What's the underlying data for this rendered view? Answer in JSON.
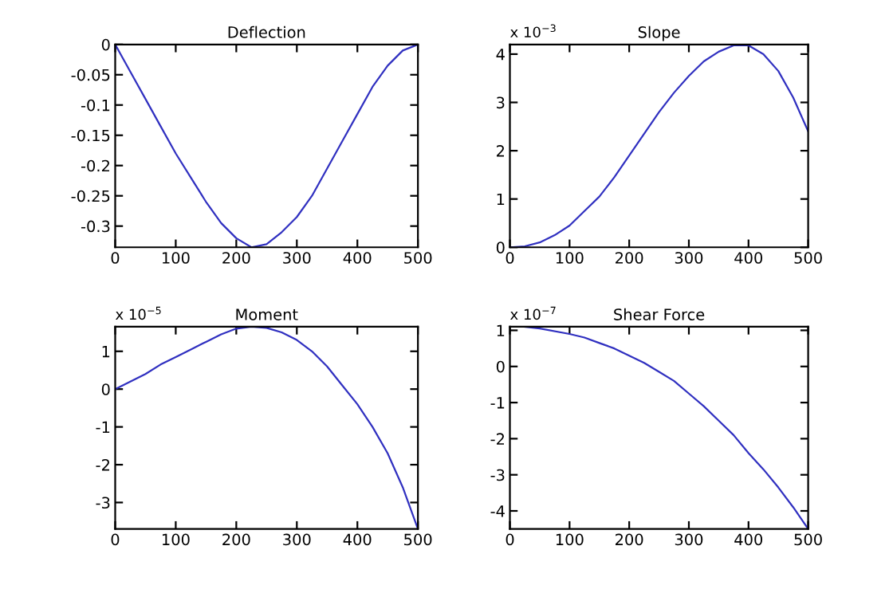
{
  "chart_data": [
    {
      "type": "line",
      "title": "Deflection",
      "x": [
        0,
        25,
        50,
        75,
        100,
        125,
        150,
        175,
        200,
        225,
        250,
        275,
        300,
        325,
        350,
        375,
        400,
        425,
        450,
        475,
        500
      ],
      "series": [
        {
          "color": "#3030c0",
          "values": [
            0,
            -0.045,
            -0.09,
            -0.135,
            -0.18,
            -0.22,
            -0.26,
            -0.295,
            -0.32,
            -0.335,
            -0.33,
            -0.31,
            -0.285,
            -0.25,
            -0.205,
            -0.16,
            -0.115,
            -0.07,
            -0.035,
            -0.01,
            0
          ]
        }
      ],
      "xlim": [
        0,
        500
      ],
      "xticks": [
        0,
        100,
        200,
        300,
        400,
        500
      ],
      "ylim": [
        -0.335,
        0
      ],
      "yticks": [
        -0.3,
        -0.25,
        -0.2,
        -0.15,
        -0.1,
        -0.05,
        0
      ],
      "grid": false,
      "legend": false
    },
    {
      "type": "line",
      "title": "Slope",
      "annotations": [
        "x 10$^{−3}$"
      ],
      "x": [
        0,
        25,
        50,
        75,
        100,
        125,
        150,
        175,
        200,
        225,
        250,
        275,
        300,
        325,
        350,
        375,
        400,
        425,
        450,
        475,
        500
      ],
      "series": [
        {
          "color": "#3030c0",
          "values": [
            0,
            0.02,
            0.1,
            0.25,
            0.45,
            0.75,
            1.05,
            1.45,
            1.9,
            2.35,
            2.8,
            3.2,
            3.55,
            3.85,
            4.05,
            4.18,
            4.18,
            4.0,
            3.65,
            3.1,
            2.4
          ]
        }
      ],
      "xlim": [
        0,
        500
      ],
      "xticks": [
        0,
        100,
        200,
        300,
        400,
        500
      ],
      "ylim": [
        0,
        4.2
      ],
      "yticks": [
        0,
        1,
        2,
        3,
        4
      ],
      "grid": false,
      "legend": false
    },
    {
      "type": "line",
      "title": "Moment",
      "annotations": [
        "x 10$^{−5}$"
      ],
      "x": [
        0,
        25,
        50,
        75,
        100,
        125,
        150,
        175,
        200,
        225,
        250,
        275,
        300,
        325,
        350,
        375,
        400,
        425,
        450,
        475,
        500
      ],
      "series": [
        {
          "color": "#3030c0",
          "values": [
            0,
            0.2,
            0.4,
            0.65,
            0.85,
            1.05,
            1.25,
            1.45,
            1.6,
            1.65,
            1.62,
            1.5,
            1.3,
            1.0,
            0.6,
            0.1,
            -0.4,
            -1.0,
            -1.7,
            -2.6,
            -3.7
          ]
        }
      ],
      "xlim": [
        0,
        500
      ],
      "xticks": [
        0,
        100,
        200,
        300,
        400,
        500
      ],
      "ylim": [
        -3.7,
        1.65
      ],
      "yticks": [
        -3,
        -2,
        -1,
        0,
        1
      ],
      "grid": false,
      "legend": false
    },
    {
      "type": "line",
      "title": "Shear Force",
      "annotations": [
        "x 10$^{−7}$"
      ],
      "x": [
        25,
        50,
        100,
        125,
        150,
        175,
        200,
        225,
        250,
        275,
        300,
        325,
        350,
        375,
        400,
        425,
        450,
        475,
        500
      ],
      "series": [
        {
          "color": "#3030c0",
          "values": [
            1.1,
            1.05,
            0.9,
            0.8,
            0.65,
            0.5,
            0.3,
            0.1,
            -0.15,
            -0.4,
            -0.75,
            -1.1,
            -1.5,
            -1.9,
            -2.4,
            -2.85,
            -3.35,
            -3.9,
            -4.5
          ]
        }
      ],
      "xlim": [
        0,
        500
      ],
      "xticks": [
        0,
        100,
        200,
        300,
        400,
        500
      ],
      "ylim": [
        -4.5,
        1.1
      ],
      "yticks": [
        -4,
        -3,
        -2,
        -1,
        0,
        1
      ],
      "grid": false,
      "legend": false
    }
  ]
}
